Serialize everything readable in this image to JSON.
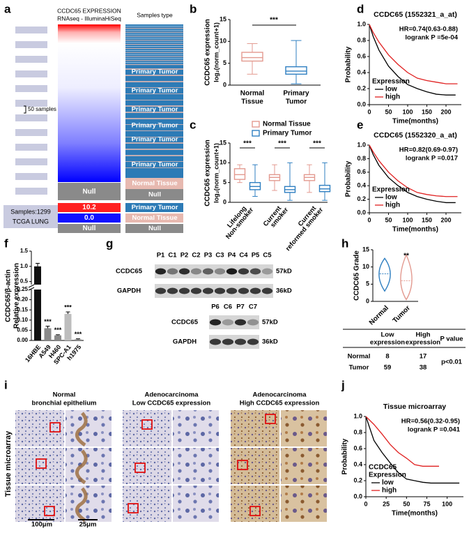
{
  "a": {
    "label": "a",
    "expression_title": "CCDC65 EXPRESSION",
    "expression_subtitle": "RNAseq - IlluminaHiSeq",
    "samples_type_title": "Samples type",
    "scale_note": "50 samples",
    "heatmap_null": "Null",
    "sample_types": [
      "Primary Tumor",
      "Primary Tumor",
      "Primary Tumor",
      "Primary Tumor",
      "Primary Tumor",
      "Primary Tumor",
      "Normal Tissue",
      "Null"
    ],
    "legend_values": [
      "10.2",
      "0.0",
      "Null"
    ],
    "legend_types": [
      "Primary Tumor",
      "Normal Tissue",
      "Null"
    ],
    "samples": "Samples:1299",
    "cohort": "TCGA LUNG"
  },
  "b": {
    "label": "b",
    "ylabel": [
      "CCDC65 expression",
      "log₂(norm_count+1)"
    ],
    "ylim": [
      0,
      15
    ],
    "yticks": [
      0,
      5,
      10,
      15
    ],
    "categories": [
      [
        "Normal",
        "Tissue"
      ],
      [
        "Primary",
        "Tumor"
      ]
    ],
    "colors": [
      "#e39a90",
      "#2f7fc1"
    ],
    "boxes": [
      [
        2.5,
        5.5,
        6.3,
        7.5,
        9.5
      ],
      [
        0.3,
        2.5,
        3.2,
        4.2,
        10.2
      ]
    ],
    "significance": "***"
  },
  "c": {
    "label": "c",
    "ylabel": [
      "CCDC65 expression",
      "log₂(norm_count+1)"
    ],
    "ylim": [
      0,
      15
    ],
    "yticks": [
      0,
      5,
      10,
      15
    ],
    "legend": [
      "Normal Tissue",
      "Primary Tumor"
    ],
    "colors": [
      "#e39a90",
      "#2f7fc1"
    ],
    "categories": [
      [
        "Lifelong",
        "Non-smoker"
      ],
      [
        "Current",
        "smoker"
      ],
      [
        "Current",
        "reformed smoker"
      ]
    ],
    "boxes": [
      [
        [
          5,
          5.8,
          7,
          8.5,
          9.5
        ],
        [
          1.5,
          3.2,
          4,
          5,
          9.5
        ]
      ],
      [
        [
          3,
          5.5,
          6.3,
          7,
          9.5
        ],
        [
          0.5,
          2.5,
          3.2,
          4,
          10
        ]
      ],
      [
        [
          2.5,
          5.5,
          6.3,
          7,
          9.5
        ],
        [
          0.5,
          2.7,
          3.4,
          4.3,
          10
        ]
      ]
    ],
    "significance": [
      "***",
      "***",
      "***"
    ]
  },
  "d": {
    "label": "d",
    "title": "CCDC65 (1552321_a_at)",
    "hr": "HR=0.74(0.63-0.88)",
    "logrank": "logrank P =5e-04",
    "xlabel": "Time(months)",
    "ylabel": "Probability",
    "xlim": [
      0,
      240
    ],
    "xticks": [
      0,
      50,
      100,
      150,
      200
    ],
    "ylim": [
      0,
      1
    ],
    "yticks": [
      {
        "value": 0,
        "label": "0.0"
      },
      0.2,
      0.4,
      0.6,
      0.8,
      {
        "value": 1,
        "label": "1.0"
      }
    ],
    "legend_title": [
      "Expression"
    ],
    "series": [
      {
        "name": "low",
        "color": "#000000",
        "x": [
          0,
          10,
          25,
          50,
          75,
          100,
          125,
          150,
          175,
          200,
          225
        ],
        "y": [
          1,
          0.85,
          0.68,
          0.48,
          0.35,
          0.25,
          0.2,
          0.16,
          0.13,
          0.12,
          0.12
        ]
      },
      {
        "name": "high",
        "color": "#e02020",
        "x": [
          0,
          10,
          25,
          50,
          75,
          100,
          125,
          150,
          175,
          200,
          230
        ],
        "y": [
          1,
          0.9,
          0.78,
          0.62,
          0.5,
          0.4,
          0.33,
          0.3,
          0.28,
          0.26,
          0.26
        ]
      }
    ]
  },
  "e": {
    "label": "e",
    "title": "CCDC65 (1552320_a_at)",
    "hr": "HR=0.82(0.69-0.97)",
    "logrank": "logrank P =0.017",
    "xlabel": "Time(months)",
    "ylabel": "Probability",
    "xlim": [
      0,
      240
    ],
    "xticks": [
      0,
      50,
      100,
      150,
      200
    ],
    "ylim": [
      0,
      1
    ],
    "yticks": [
      {
        "value": 0,
        "label": "0.0"
      },
      0.2,
      0.4,
      0.6,
      0.8,
      {
        "value": 1,
        "label": "1.0"
      }
    ],
    "legend_title": [
      "Expression"
    ],
    "series": [
      {
        "name": "low",
        "color": "#000000",
        "x": [
          0,
          10,
          25,
          50,
          75,
          100,
          125,
          150,
          175,
          200,
          225
        ],
        "y": [
          1,
          0.86,
          0.7,
          0.52,
          0.4,
          0.3,
          0.24,
          0.2,
          0.17,
          0.15,
          0.15
        ]
      },
      {
        "name": "high",
        "color": "#e02020",
        "x": [
          0,
          10,
          25,
          50,
          75,
          100,
          125,
          150,
          175,
          200,
          230
        ],
        "y": [
          1,
          0.9,
          0.77,
          0.6,
          0.47,
          0.37,
          0.3,
          0.27,
          0.25,
          0.24,
          0.24
        ]
      }
    ]
  },
  "f": {
    "label": "f",
    "ylabel": [
      "CCDC65/β-actin",
      "Relative expression"
    ],
    "lower_ylim": [
      0,
      0.25
    ],
    "lower_yticks": [
      {
        "value": 0,
        "label": "0.00"
      },
      0.05,
      {
        "value": 0.1,
        "label": "0.10"
      },
      0.15,
      {
        "value": 0.2,
        "label": "0.20"
      },
      0.25
    ],
    "upper_ylim": [
      0.4,
      1.5
    ],
    "upper_yticks": [
      0.5,
      {
        "value": 1,
        "label": "1.0"
      },
      1.5
    ],
    "categories": [
      "16HBE",
      "A549",
      "H460",
      "SPC-A1",
      "h1975"
    ],
    "values": [
      1.0,
      0.06,
      0.025,
      0.13,
      0.005
    ],
    "errors": [
      0.1,
      0.01,
      0.003,
      0.01,
      0.003
    ],
    "colors": [
      "#111111",
      "#8a8a8a",
      "#8a8a8a",
      "#bdbdbd",
      "#8a8a8a"
    ],
    "significance": [
      null,
      "***",
      "***",
      "***",
      "***"
    ]
  },
  "g": {
    "label": "g",
    "lanes1": [
      "P1",
      "C1",
      "P2",
      "C2",
      "P3",
      "C3",
      "P4",
      "C4",
      "P5",
      "C5"
    ],
    "lanes2": [
      "P6",
      "C6",
      "P7",
      "C7"
    ],
    "proteins": [
      "CCDC65",
      "GAPDH"
    ],
    "sizes": [
      "57kD",
      "36kD"
    ]
  },
  "h": {
    "label": "h",
    "ylabel": "CCDC65 Grade",
    "ylim": [
      0,
      15
    ],
    "yticks": [
      0,
      5,
      10,
      15
    ],
    "categories": [
      "Normal",
      "Tumor"
    ],
    "colors": [
      "#2f7fc1",
      "#e39a90"
    ],
    "violins": [
      [
        3,
        8,
        12.5
      ],
      [
        0.5,
        6,
        13.5
      ]
    ],
    "significance": "**",
    "table": {
      "header": [
        [
          "Low",
          "expression"
        ],
        [
          "High",
          "expression"
        ],
        [
          "P value"
        ]
      ],
      "rows": [
        [
          "Normal",
          "8",
          "17"
        ],
        [
          "Tumor",
          "59",
          "38"
        ]
      ],
      "p_value": "p<0.01"
    }
  },
  "i": {
    "label": "i",
    "side_label": "Tissue microarray",
    "titles": [
      [
        "Normal",
        "bronchial epithelium"
      ],
      [
        "Adenocarcinoma",
        "Low CCDC65 expression"
      ],
      [
        "Adenocarcinoma",
        "High CCDC65 expression"
      ]
    ],
    "scale_bars": [
      "100μm",
      "25μm"
    ]
  },
  "j": {
    "label": "j",
    "title": "Tissue microarray",
    "hr": "HR=0.56(0.32-0.95)",
    "logrank": "logrank P =0.041",
    "xlabel": "Time(months)",
    "ylabel": "Probability",
    "xlim": [
      0,
      120
    ],
    "xticks": [
      0,
      25,
      50,
      75,
      100
    ],
    "ylim": [
      0,
      1
    ],
    "yticks": [
      {
        "value": 0,
        "label": "0.0"
      },
      0.2,
      0.4,
      0.6,
      0.8,
      {
        "value": 1,
        "label": "1.0"
      }
    ],
    "legend_title": [
      "CCDC65",
      "Expression"
    ],
    "series": [
      {
        "name": "low",
        "color": "#000000",
        "x": [
          0,
          5,
          10,
          20,
          30,
          40,
          50,
          60,
          70,
          80,
          100,
          115
        ],
        "y": [
          1,
          0.85,
          0.7,
          0.55,
          0.42,
          0.3,
          0.22,
          0.2,
          0.18,
          0.17,
          0.17,
          0.17
        ]
      },
      {
        "name": "high",
        "color": "#e02020",
        "x": [
          0,
          10,
          20,
          30,
          40,
          50,
          60,
          70,
          80,
          90
        ],
        "y": [
          1,
          0.9,
          0.78,
          0.65,
          0.55,
          0.48,
          0.4,
          0.38,
          0.38,
          0.38
        ]
      }
    ]
  }
}
